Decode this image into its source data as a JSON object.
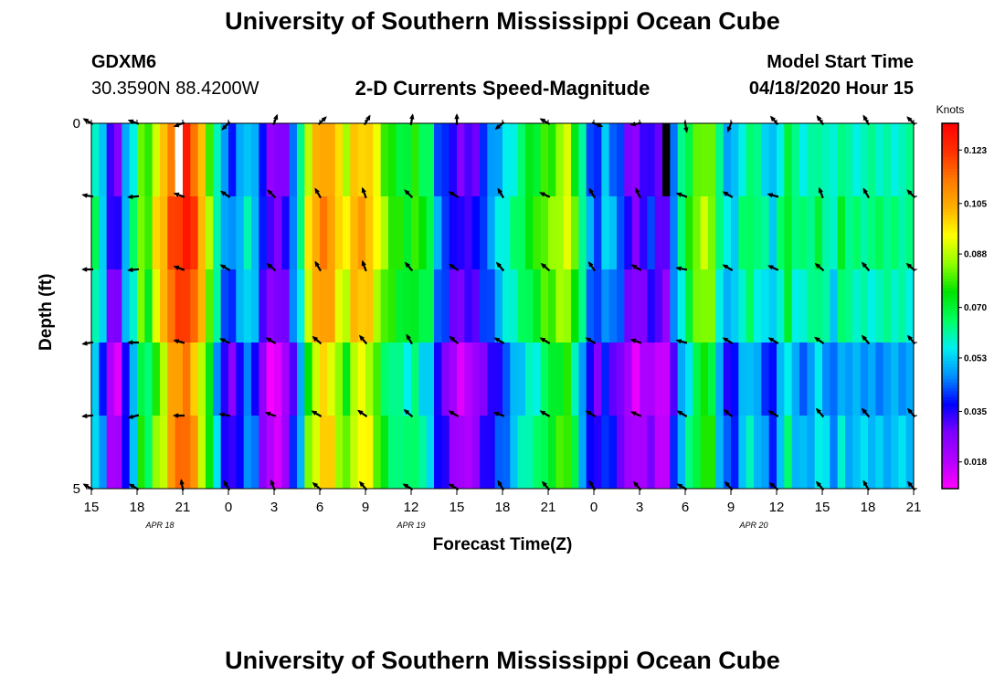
{
  "header": {
    "title": "University of Southern Mississippi Ocean Cube",
    "station_id": "GDXM6",
    "station_coords": "30.3590N 88.4200W",
    "subtitle": "2-D Currents Speed-Magnitude",
    "model_start_label": "Model Start Time",
    "model_start_value": "04/18/2020 Hour 15"
  },
  "footer": {
    "title": "University of Southern Mississippi Ocean Cube"
  },
  "colors": {
    "colormap": [
      "#ff00ff",
      "#b300ff",
      "#7d00ff",
      "#0000ff",
      "#0090ff",
      "#00f0f0",
      "#00ff60",
      "#00e400",
      "#90ff00",
      "#ffff00",
      "#ffb000",
      "#ff7800",
      "#ff3000",
      "#ff0000"
    ],
    "arrow": "#000000",
    "missing": "#ffffff"
  },
  "chart_data": {
    "type": "heatmap",
    "xlabel": "Forecast Time(Z)",
    "ylabel": "Depth (ft)",
    "ylim": [
      0,
      5
    ],
    "y_tick_labels": [
      "0",
      "5"
    ],
    "x_hours": [
      0,
      3,
      6,
      9,
      12,
      15,
      18,
      21,
      24,
      27,
      30,
      33,
      36,
      39,
      42,
      45,
      48,
      51,
      54
    ],
    "x_tick_labels": [
      "15",
      "18",
      "21",
      "0",
      "3",
      "6",
      "9",
      "12",
      "15",
      "18",
      "21",
      "0",
      "3",
      "6",
      "9",
      "12",
      "15",
      "18",
      "21"
    ],
    "date_labels": [
      {
        "text": "APR 18",
        "hour": 4.5
      },
      {
        "text": "APR 19",
        "hour": 21
      },
      {
        "text": "APR 20",
        "hour": 43.5
      }
    ],
    "colorbar": {
      "label": "Knots",
      "min": 0.009,
      "max": 0.132,
      "tick_values": [
        0.018,
        0.035,
        0.053,
        0.07,
        0.088,
        0.105,
        0.123
      ],
      "tick_labels": [
        "0.018",
        "0.035",
        "0.053",
        "0.070",
        "0.088",
        "0.105",
        "0.123"
      ]
    },
    "time_step_hours": 0.5,
    "depth_bins": 5,
    "profile": [
      0.062,
      0.052,
      0.03,
      0.028,
      0.048,
      0.06,
      0.082,
      0.075,
      0.092,
      0.1,
      0.115,
      0.12,
      0.124,
      0.115,
      0.1,
      0.082,
      0.06,
      0.045,
      0.04,
      0.048,
      0.055,
      0.05,
      0.035,
      0.025,
      0.025,
      0.03,
      0.045,
      0.06,
      0.09,
      0.102,
      0.108,
      0.105,
      0.095,
      0.088,
      0.1,
      0.102,
      0.1,
      0.09,
      0.08,
      0.075,
      0.072,
      0.07,
      0.075,
      0.068,
      0.065,
      0.045,
      0.04,
      0.032,
      0.028,
      0.03,
      0.032,
      0.04,
      0.045,
      0.05,
      0.055,
      0.06,
      0.065,
      0.07,
      0.072,
      0.078,
      0.08,
      0.085,
      0.088,
      0.075,
      0.06,
      0.045,
      0.04,
      0.05,
      0.045,
      0.04,
      0.03,
      0.025,
      0.03,
      0.035,
      0.028,
      0.025,
      0.045,
      0.06,
      0.07,
      0.08,
      0.085,
      0.082,
      0.06,
      0.05,
      0.05,
      0.06,
      0.065,
      0.06,
      0.055,
      0.05,
      0.06,
      0.07,
      0.06,
      0.058,
      0.06,
      0.065,
      0.06,
      0.055,
      0.065,
      0.06
    ],
    "depth_offsets": [
      0.0,
      0.004,
      0.0,
      -0.012,
      -0.008
    ],
    "missing_cells": [
      {
        "col": 11,
        "row": 0,
        "color": "#ffffff"
      },
      {
        "col": 75,
        "row": 0,
        "color": "#000000"
      }
    ],
    "vectors": {
      "hours": [
        0,
        3,
        6,
        9,
        12,
        15,
        18,
        21,
        24,
        27,
        30,
        33,
        36,
        39,
        42,
        45,
        48,
        51,
        54
      ],
      "depth_rows": [
        0,
        1,
        2,
        3,
        4,
        5
      ],
      "directions_deg": [
        [
          300,
          290,
          250,
          225,
          20,
          45,
          30,
          10,
          0,
          230,
          300,
          110,
          260,
          170,
          200,
          320,
          325,
          330,
          315
        ],
        [
          280,
          265,
          290,
          305,
          315,
          330,
          340,
          315,
          300,
          330,
          295,
          330,
          335,
          290,
          300,
          285,
          340,
          330,
          315
        ],
        [
          270,
          265,
          290,
          300,
          310,
          330,
          340,
          320,
          305,
          320,
          310,
          325,
          300,
          280,
          300,
          295,
          310,
          320,
          310
        ],
        [
          260,
          270,
          285,
          295,
          300,
          310,
          320,
          330,
          310,
          300,
          300,
          300,
          290,
          285,
          300,
          300,
          305,
          320,
          320
        ],
        [
          265,
          255,
          270,
          280,
          290,
          300,
          305,
          310,
          300,
          290,
          300,
          300,
          295,
          300,
          310,
          300,
          320,
          320,
          320
        ],
        [
          300,
          300,
          350,
          330,
          340,
          310,
          320,
          300,
          300,
          330,
          320,
          330,
          320,
          300,
          320,
          310,
          320,
          330,
          320
        ]
      ]
    }
  }
}
